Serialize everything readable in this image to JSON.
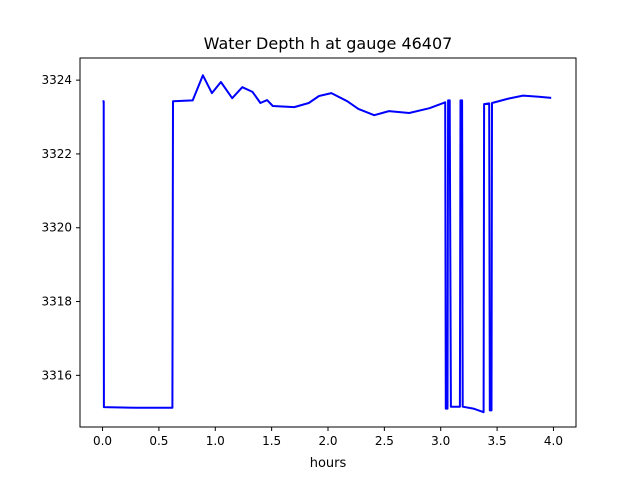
{
  "chart_data": {
    "type": "line",
    "title": "Water Depth h at gauge 46407",
    "xlabel": "hours",
    "ylabel": "",
    "xlim": [
      -0.2,
      4.2
    ],
    "ylim": [
      3314.6,
      3324.6
    ],
    "xticks": [
      0.0,
      0.5,
      1.0,
      1.5,
      2.0,
      2.5,
      3.0,
      3.5,
      4.0
    ],
    "xtick_labels": [
      "0.0",
      "0.5",
      "1.0",
      "1.5",
      "2.0",
      "2.5",
      "3.0",
      "3.5",
      "4.0"
    ],
    "yticks": [
      3316,
      3318,
      3320,
      3322,
      3324
    ],
    "ytick_labels": [
      "3316",
      "3318",
      "3320",
      "3322",
      "3324"
    ],
    "grid": false,
    "series": [
      {
        "name": "h",
        "color": "#0000ff",
        "x": [
          0.0,
          0.01,
          0.012,
          0.3,
          0.62,
          0.625,
          0.8,
          0.89,
          0.97,
          1.05,
          1.15,
          1.24,
          1.33,
          1.4,
          1.46,
          1.51,
          1.7,
          1.83,
          1.92,
          2.03,
          2.17,
          2.27,
          2.41,
          2.54,
          2.72,
          2.9,
          3.04,
          3.045,
          3.06,
          3.065,
          3.08,
          3.09,
          3.1,
          3.17,
          3.175,
          3.19,
          3.195,
          3.29,
          3.38,
          3.385,
          3.43,
          3.435,
          3.45,
          3.455,
          3.6,
          3.73,
          3.87,
          3.98
        ],
        "y": [
          3323.43,
          3323.43,
          3315.14,
          3315.12,
          3315.12,
          3323.43,
          3323.45,
          3324.13,
          3323.65,
          3323.95,
          3323.51,
          3323.81,
          3323.68,
          3323.38,
          3323.46,
          3323.3,
          3323.27,
          3323.38,
          3323.57,
          3323.65,
          3323.43,
          3323.22,
          3323.05,
          3323.16,
          3323.11,
          3323.24,
          3323.4,
          3315.1,
          3315.1,
          3323.45,
          3323.45,
          3315.15,
          3315.15,
          3315.15,
          3323.45,
          3323.45,
          3315.15,
          3315.1,
          3315.0,
          3323.35,
          3323.37,
          3315.05,
          3315.05,
          3323.38,
          3323.5,
          3323.58,
          3323.55,
          3323.52
        ]
      }
    ]
  }
}
